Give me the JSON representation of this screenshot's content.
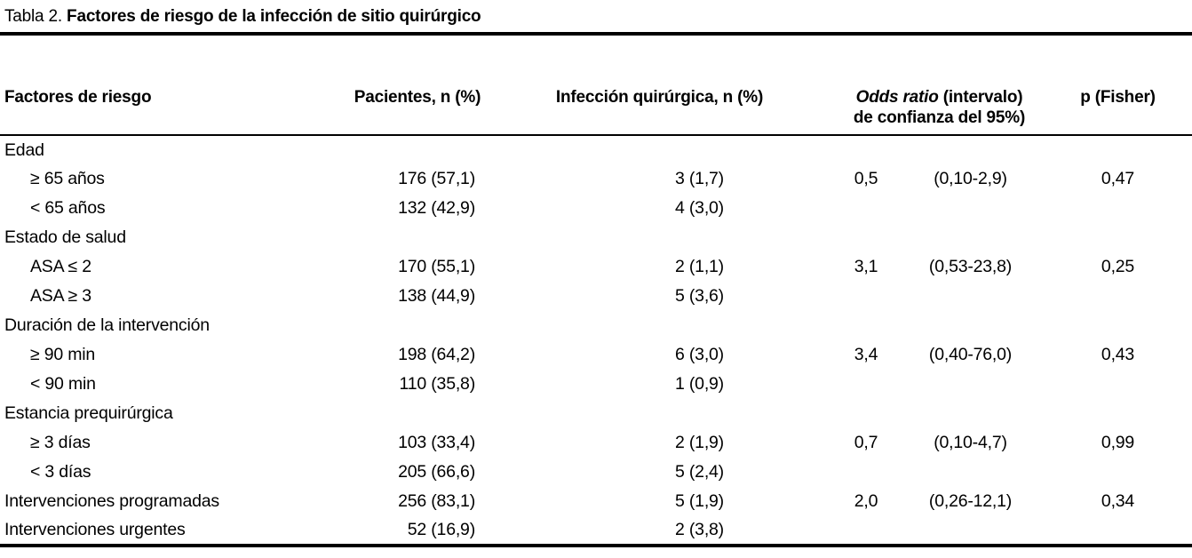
{
  "page": {
    "title_prefix": "Tabla 2.",
    "title_bold": "Factores de riesgo de la infección de sitio quirúrgico"
  },
  "table": {
    "headers": {
      "factor": "Factores de riesgo",
      "patients": "Pacientes, n (%)",
      "infection": "Infección quirúrgica, n (%)",
      "or_italic": "Odds ratio",
      "or_after_italic": "(intervalo)",
      "or_line2": "de confianza del 95%)",
      "p": "p (Fisher)"
    },
    "rows": [
      {
        "factor": "Edad",
        "patients": "",
        "infection": "",
        "or": "",
        "ci": "",
        "p": ""
      },
      {
        "factor": "≥ 65 años",
        "patients": "176 (57,1)",
        "infection": "3 (1,7)",
        "or": "0,5",
        "ci": "(0,10-2,9)",
        "p": "0,47"
      },
      {
        "factor": "< 65 años",
        "patients": "132 (42,9)",
        "infection": "4 (3,0)",
        "or": "",
        "ci": "",
        "p": ""
      },
      {
        "factor": "Estado de salud",
        "patients": "",
        "infection": "",
        "or": "",
        "ci": "",
        "p": ""
      },
      {
        "factor": "ASA ≤ 2",
        "patients": "170 (55,1)",
        "infection": "2 (1,1)",
        "or": "3,1",
        "ci": "(0,53-23,8)",
        "p": "0,25"
      },
      {
        "factor": "ASA ≥ 3",
        "patients": "138 (44,9)",
        "infection": "5 (3,6)",
        "or": "",
        "ci": "",
        "p": ""
      },
      {
        "factor": "Duración de la intervención",
        "patients": "",
        "infection": "",
        "or": "",
        "ci": "",
        "p": ""
      },
      {
        "factor": "≥ 90 min",
        "patients": "198 (64,2)",
        "infection": "6 (3,0)",
        "or": "3,4",
        "ci": "(0,40-76,0)",
        "p": "0,43"
      },
      {
        "factor": "< 90 min",
        "patients": "110 (35,8)",
        "infection": "1 (0,9)",
        "or": "",
        "ci": "",
        "p": ""
      },
      {
        "factor": "Estancia prequirúrgica",
        "patients": "",
        "infection": "",
        "or": "",
        "ci": "",
        "p": ""
      },
      {
        "factor": "≥ 3 días",
        "patients": "103 (33,4)",
        "infection": "2 (1,9)",
        "or": "0,7",
        "ci": "(0,10-4,7)",
        "p": "0,99"
      },
      {
        "factor": "< 3 días",
        "patients": "205 (66,6)",
        "infection": "5 (2,4)",
        "or": "",
        "ci": "",
        "p": ""
      },
      {
        "factor": "Intervenciones programadas",
        "patients": "256 (83,1)",
        "infection": "5 (1,9)",
        "or": "2,0",
        "ci": "(0,26-12,1)",
        "p": "0,34"
      },
      {
        "factor": "Intervenciones urgentes",
        "patients": "52 (16,9)",
        "infection": "2 (3,8)",
        "or": "",
        "ci": "",
        "p": ""
      }
    ]
  }
}
